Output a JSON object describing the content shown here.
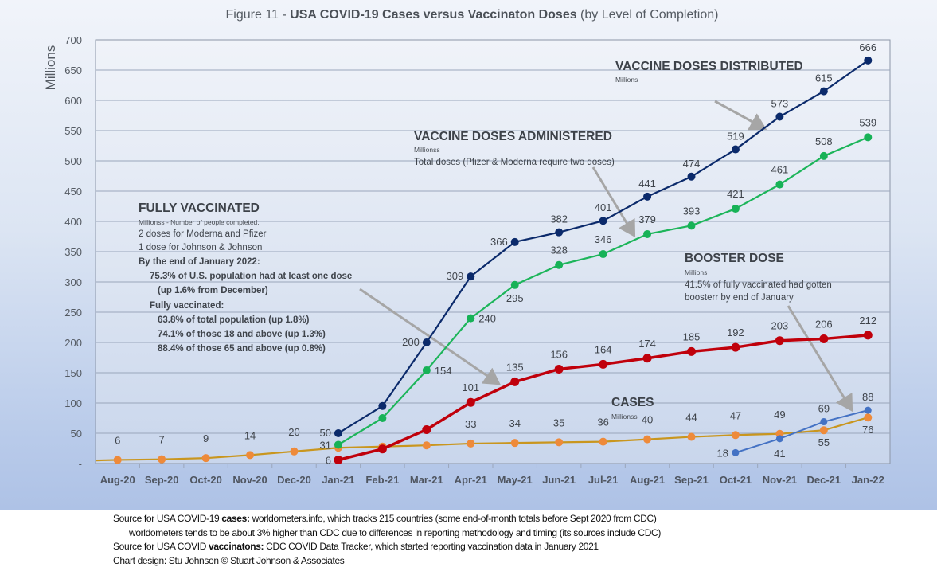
{
  "chart_data": {
    "type": "line",
    "title_prefix": "Figure 11 - ",
    "title_bold": "USA COVID-19 Cases versus Vaccinaton Doses",
    "title_suffix": " (by Level of Completion)",
    "ylabel": "Millions",
    "xlabel": "",
    "ylim": [
      0,
      700
    ],
    "yticks": [
      0,
      50,
      100,
      150,
      200,
      250,
      300,
      350,
      400,
      450,
      500,
      550,
      600,
      650,
      700
    ],
    "ytick_labels": [
      "-",
      "50",
      "100",
      "150",
      "200",
      "250",
      "300",
      "350",
      "400",
      "450",
      "500",
      "550",
      "600",
      "650",
      "700"
    ],
    "grid": true,
    "categories": [
      "Aug-20",
      "Sep-20",
      "Oct-20",
      "Nov-20",
      "Dec-20",
      "Jan-21",
      "Feb-21",
      "Mar-21",
      "Apr-21",
      "May-21",
      "Jun-21",
      "Jul-21",
      "Aug-21",
      "Sep-21",
      "Oct-21",
      "Nov-21",
      "Dec-21",
      "Jan-22"
    ],
    "series": [
      {
        "name": "Cases",
        "color": "#c9961e",
        "marker_color": "#ee8a3a",
        "values": [
          6,
          7,
          9,
          14,
          20,
          26,
          28,
          30,
          33,
          34,
          35,
          36,
          40,
          44,
          47,
          49,
          55,
          76
        ],
        "labels": [
          "6",
          "7",
          "9",
          "14",
          "20",
          null,
          null,
          null,
          "33",
          "34",
          "35",
          "36",
          "40",
          "44",
          "47",
          "49",
          "55",
          "76"
        ]
      },
      {
        "name": "Vaccine Doses Distributed",
        "color": "#0b2a6b",
        "marker_color": "#0b2a6b",
        "values": [
          null,
          null,
          null,
          null,
          null,
          50,
          95,
          200,
          309,
          366,
          382,
          401,
          441,
          474,
          519,
          573,
          615,
          666
        ],
        "labels": [
          null,
          null,
          null,
          null,
          null,
          "50",
          null,
          "200",
          "309",
          "366",
          "382",
          "401",
          "441",
          "474",
          "519",
          "573",
          "615",
          "666"
        ]
      },
      {
        "name": "Vaccine Doses Administered",
        "color": "#1db55a",
        "marker_color": "#17b257",
        "values": [
          null,
          null,
          null,
          null,
          null,
          31,
          75,
          154,
          240,
          295,
          328,
          346,
          379,
          393,
          421,
          461,
          508,
          539
        ],
        "labels": [
          null,
          null,
          null,
          null,
          null,
          "31",
          null,
          "154",
          "240",
          "295",
          "328",
          "346",
          "379",
          "393",
          "421",
          "461",
          "508",
          "539"
        ]
      },
      {
        "name": "Fully Vaccinated",
        "color": "#c0000b",
        "marker_color": "#c0000b",
        "values": [
          null,
          null,
          null,
          null,
          null,
          6,
          24,
          56,
          101,
          135,
          156,
          164,
          174,
          185,
          192,
          203,
          206,
          212
        ],
        "labels": [
          null,
          null,
          null,
          null,
          null,
          "6",
          null,
          null,
          "101",
          "135",
          "156",
          "164",
          "174",
          "185",
          "192",
          "203",
          "206",
          "212"
        ]
      },
      {
        "name": "Booster Dose",
        "color": "#4472c4",
        "marker_color": "#4472c4",
        "values": [
          null,
          null,
          null,
          null,
          null,
          null,
          null,
          null,
          null,
          null,
          null,
          null,
          null,
          null,
          18,
          41,
          69,
          88
        ],
        "labels": [
          null,
          null,
          null,
          null,
          null,
          null,
          null,
          null,
          null,
          null,
          null,
          null,
          null,
          null,
          "18",
          "41",
          "69",
          "88"
        ]
      }
    ],
    "annotations": {
      "distributed": {
        "heading": "VACCINE DOSES DISTRIBUTED",
        "sub": "Millions",
        "lines": []
      },
      "administered": {
        "heading": "VACCINE DOSES ADMINISTERED",
        "sub": "Millionss",
        "lines": [
          "Total doses (Pfizer & Moderna require two doses)"
        ]
      },
      "fully": {
        "heading": "FULLY VACCINATED",
        "sub": "Millionss - Number of people completed.",
        "lines": [
          "2 doses for Moderna and Pfizer",
          "1 dose for Johnson & Johnson"
        ],
        "bold_lines": [
          "By the end of January 2022:",
          "75.3% of U.S. population had at least one dose",
          "(up 1.6% from December)",
          "Fully vaccinated:",
          "63.8% of total population (up 1.8%)",
          "74.1% of those 18 and above (up 1.3%)",
          "88.4% of those 65 and above (up 0.8%)"
        ]
      },
      "booster": {
        "heading": "BOOSTER DOSE",
        "sub": "Millions",
        "lines": [
          "41.5% of fully vaccinated had gotten",
          "boosterr by end of January"
        ]
      },
      "cases": {
        "heading": "CASES",
        "sub": "Millionss",
        "lines": []
      }
    }
  },
  "footer": {
    "line1_pre": "Source for USA COVID-19 ",
    "line1_bold": "cases:",
    "line1_post": " worldometers.info, which tracks 215 countries  (some end-of-month totals before Sept 2020 from CDC)",
    "line2": "worldometers tends to be about 3% higher than CDC due to differences in reporting methodology and timing (its sources include CDC)",
    "line3_pre": "Source for USA COVID ",
    "line3_bold": "vaccinatons:",
    "line3_post": " CDC COVID Data Tracker, which started reporting vaccination data in January 2021",
    "line4": "Chart design: Stu Johnson © Stuart Johnson & Associates"
  }
}
